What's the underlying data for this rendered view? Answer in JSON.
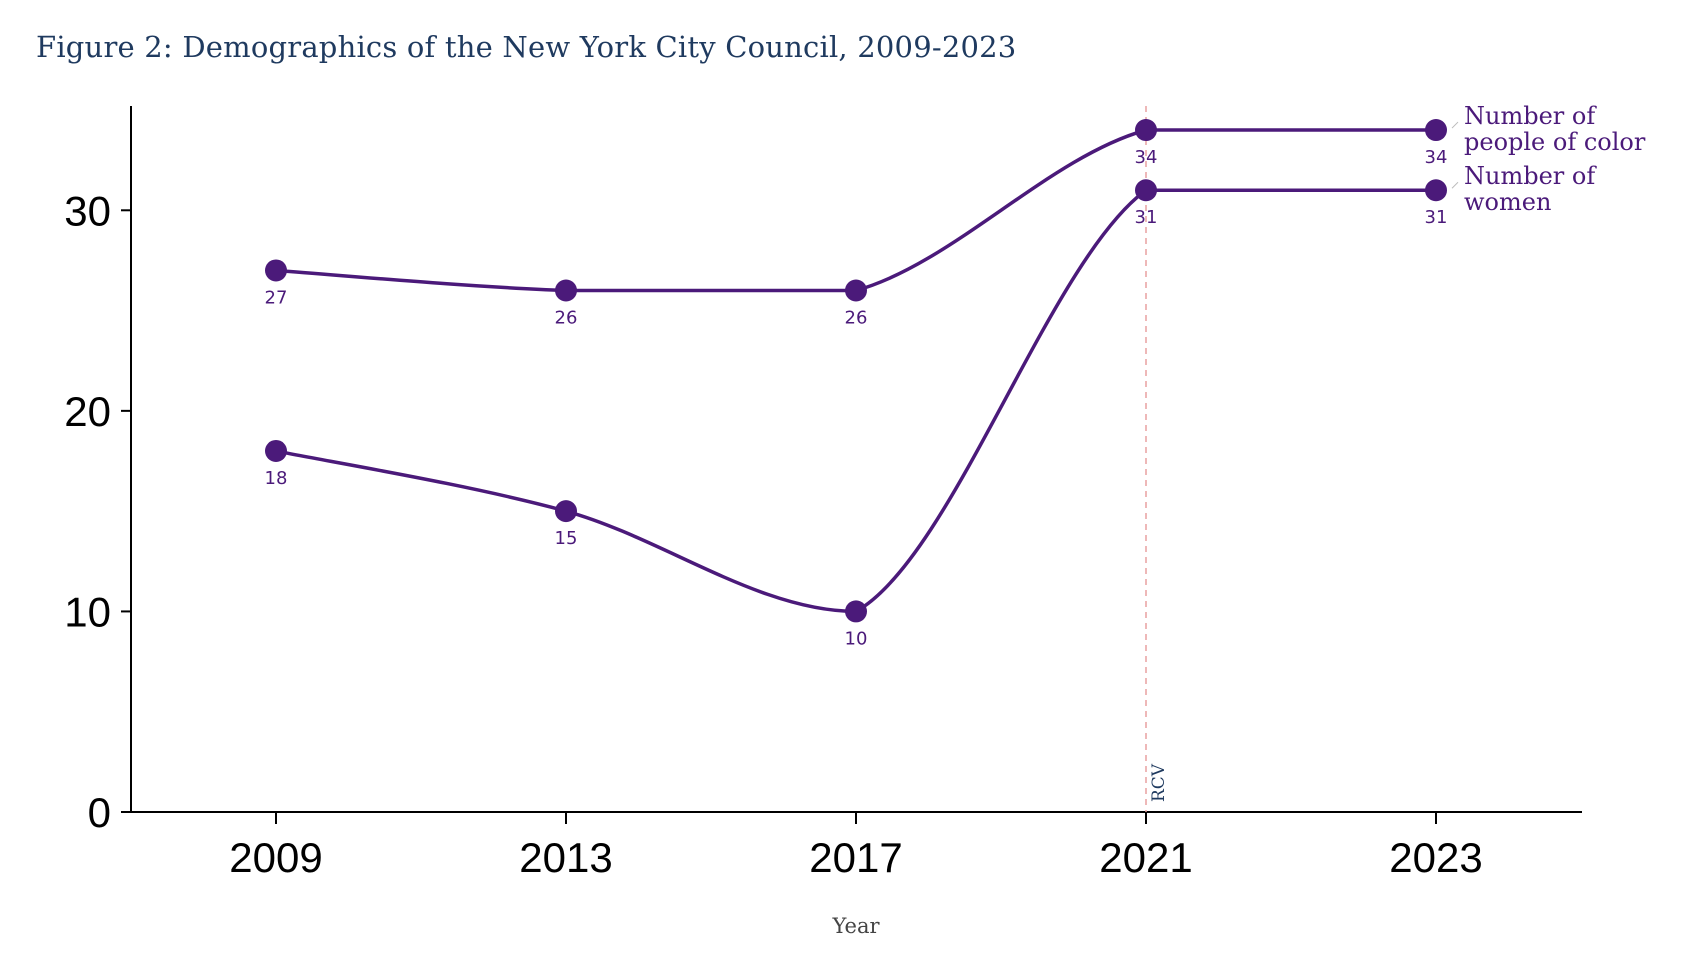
{
  "title": "Figure 2: Demographics of the New York City Council, 2009-2023",
  "chart_data": {
    "type": "line",
    "title": "Figure 2: Demographics of the New York City Council, 2009-2023",
    "xlabel": "Year",
    "ylabel": "",
    "categories": [
      "2009",
      "2013",
      "2017",
      "2021",
      "2023"
    ],
    "ylim": [
      0,
      35
    ],
    "yticks": [
      0,
      10,
      20,
      30
    ],
    "grid": false,
    "legend": "inline-right",
    "line_color": "#4b1a7a",
    "series": [
      {
        "name": "Number of people of color",
        "label_lines": [
          "Number of",
          "people of color"
        ],
        "values": [
          27,
          26,
          26,
          34,
          34
        ]
      },
      {
        "name": "Number of women",
        "label_lines": [
          "Number of",
          "women"
        ],
        "values": [
          18,
          15,
          10,
          31,
          31
        ]
      }
    ],
    "annotations": [
      {
        "x": "2021",
        "text": "RCV",
        "style": "dashed-vertical",
        "color": "#e8a0a0"
      }
    ]
  }
}
